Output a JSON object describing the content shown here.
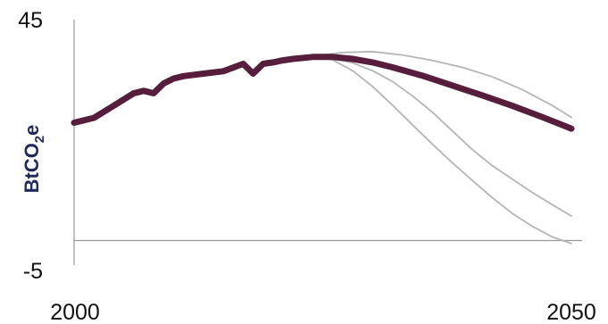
{
  "chart_data": {
    "type": "line",
    "ylabel": {
      "base": "BtCO",
      "sub": "2",
      "tail": "e"
    },
    "ylim": [
      -5,
      45
    ],
    "xlim": [
      2000,
      2050
    ],
    "x_tick_labels": [
      "2000",
      "2050"
    ],
    "y_tick_labels": [
      "45",
      "-5"
    ],
    "grid": false,
    "reference_line_y": 0,
    "colors": {
      "main": "#561d3c",
      "scenario": "#b5b5b5",
      "axis": "#9a9a9a"
    },
    "series": [
      {
        "role": "historical-and-projection",
        "x": [
          2000,
          2002,
          2004,
          2006,
          2007,
          2008,
          2009,
          2010,
          2011,
          2013,
          2015,
          2017,
          2018,
          2019,
          2020,
          2021,
          2022,
          2024,
          2026,
          2028,
          2030,
          2032,
          2035,
          2038,
          2041,
          2044,
          2047,
          2050
        ],
        "y": [
          24.0,
          25.0,
          27.5,
          30.0,
          30.5,
          30.0,
          32.0,
          33.0,
          33.5,
          34.0,
          34.5,
          36.0,
          34.0,
          36.0,
          36.3,
          36.7,
          37.0,
          37.4,
          37.4,
          37.0,
          36.3,
          35.3,
          33.6,
          31.6,
          29.6,
          27.5,
          25.2,
          22.8
        ]
      },
      {
        "role": "upper-scenario",
        "x": [
          2024,
          2027,
          2030,
          2033,
          2036,
          2039,
          2042,
          2045,
          2048,
          2050
        ],
        "y": [
          37.5,
          38.3,
          38.5,
          37.8,
          36.7,
          35.3,
          33.4,
          30.8,
          27.6,
          25.1
        ]
      },
      {
        "role": "middle-scenario",
        "x": [
          2024,
          2026,
          2028,
          2030,
          2032,
          2034,
          2036,
          2038,
          2040,
          2042,
          2044,
          2046,
          2048,
          2050
        ],
        "y": [
          37.4,
          37.1,
          36.2,
          34.6,
          32.4,
          29.5,
          26.2,
          22.4,
          18.6,
          15.3,
          12.6,
          9.9,
          7.4,
          5.0
        ]
      },
      {
        "role": "lower-scenario",
        "x": [
          2024,
          2026,
          2028,
          2030,
          2032,
          2034,
          2036,
          2038,
          2040,
          2042,
          2044,
          2046,
          2048,
          2050
        ],
        "y": [
          37.4,
          36.8,
          34.6,
          31.4,
          27.6,
          23.6,
          19.7,
          15.9,
          12.3,
          8.8,
          5.6,
          3.0,
          0.8,
          -0.6
        ]
      }
    ]
  }
}
